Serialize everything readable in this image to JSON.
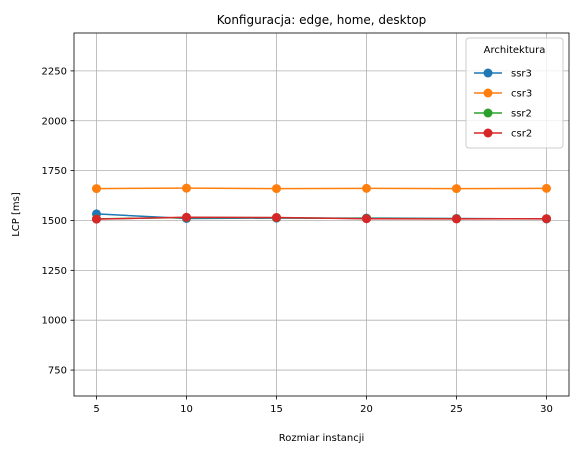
{
  "chart_data": {
    "type": "line",
    "title": "Konfiguracja: edge, home, desktop",
    "xlabel": "Rozmiar instancji",
    "ylabel": "LCP [ms]",
    "x": [
      5,
      10,
      15,
      20,
      25,
      30
    ],
    "xticks": [
      5,
      10,
      15,
      20,
      25,
      30
    ],
    "yticks": [
      750,
      1000,
      1250,
      1500,
      1750,
      2000,
      2250
    ],
    "xlim": [
      3.75,
      31.25
    ],
    "ylim": [
      620,
      2440
    ],
    "grid": true,
    "legend": {
      "title": "Architektura",
      "placement": "top-right"
    },
    "series": [
      {
        "name": "ssr3",
        "color": "#1f77b4",
        "values": [
          1533,
          1510,
          1512,
          1512,
          1510,
          1508
        ]
      },
      {
        "name": "csr3",
        "color": "#ff7f0e",
        "values": [
          1660,
          1662,
          1660,
          1661,
          1660,
          1661
        ]
      },
      {
        "name": "ssr2",
        "color": "#2ca02c",
        "values": [
          1508,
          1515,
          1514,
          1510,
          1509,
          1509
        ]
      },
      {
        "name": "csr2",
        "color": "#d62728",
        "values": [
          1507,
          1516,
          1515,
          1509,
          1508,
          1509
        ]
      }
    ]
  }
}
